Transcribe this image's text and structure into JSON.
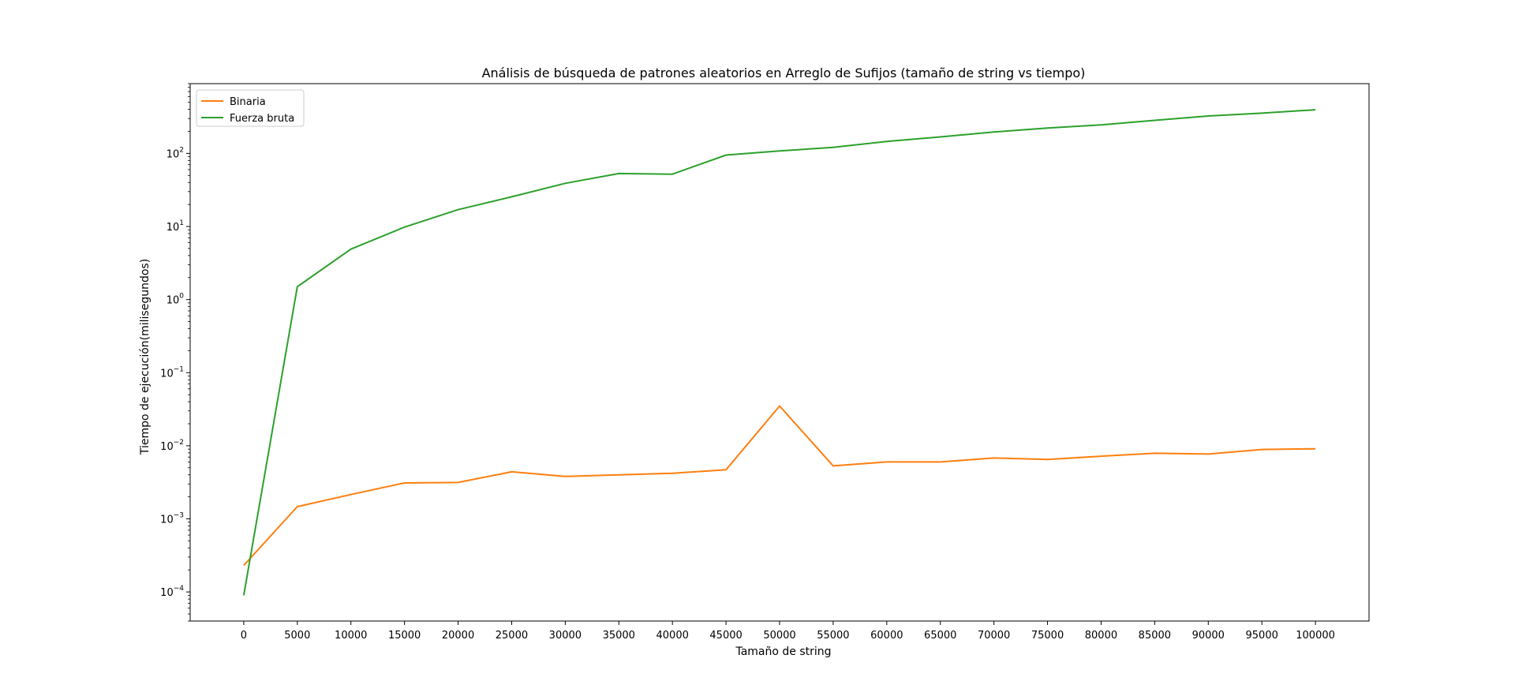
{
  "chart_data": {
    "type": "line",
    "title": "Análisis de búsqueda de patrones aleatorios en Arreglo de Sufijos (tamaño de string vs tiempo)",
    "xlabel": "Tamaño de string",
    "ylabel": "Tiempo de ejecución(milisegundos)",
    "x": [
      0,
      5000,
      10000,
      15000,
      20000,
      25000,
      30000,
      35000,
      40000,
      45000,
      50000,
      55000,
      60000,
      65000,
      70000,
      75000,
      80000,
      85000,
      90000,
      95000,
      100000
    ],
    "xticks": [
      "0",
      "5000",
      "10000",
      "15000",
      "20000",
      "25000",
      "30000",
      "35000",
      "40000",
      "45000",
      "50000",
      "55000",
      "60000",
      "65000",
      "70000",
      "75000",
      "80000",
      "85000",
      "90000",
      "95000",
      "100000"
    ],
    "xlim": [
      -5000,
      105000
    ],
    "yscale": "log",
    "ylim": [
      4e-05,
      900
    ],
    "ytick_exponents": [
      "-4",
      "-3",
      "-2",
      "-1",
      "0",
      "1",
      "2"
    ],
    "ytick_values": [
      0.0001,
      0.001,
      0.01,
      0.1,
      1,
      10,
      100
    ],
    "grid": false,
    "legend_position": "top-left",
    "series": [
      {
        "name": "Binaria",
        "color": "#ff7f0e",
        "values": [
          0.00023,
          0.00147,
          0.00215,
          0.0031,
          0.00315,
          0.0044,
          0.0038,
          0.004,
          0.0042,
          0.0047,
          0.035,
          0.0053,
          0.006,
          0.006,
          0.0068,
          0.0065,
          0.0072,
          0.0079,
          0.0077,
          0.0089,
          0.0091
        ]
      },
      {
        "name": "Fuerza bruta",
        "color": "#2ca02c",
        "values": [
          9e-05,
          1.5,
          4.9,
          9.8,
          17,
          25.5,
          39,
          53,
          52,
          95,
          108,
          121,
          146,
          168,
          196,
          222,
          245,
          283,
          325,
          355,
          395
        ]
      }
    ]
  }
}
